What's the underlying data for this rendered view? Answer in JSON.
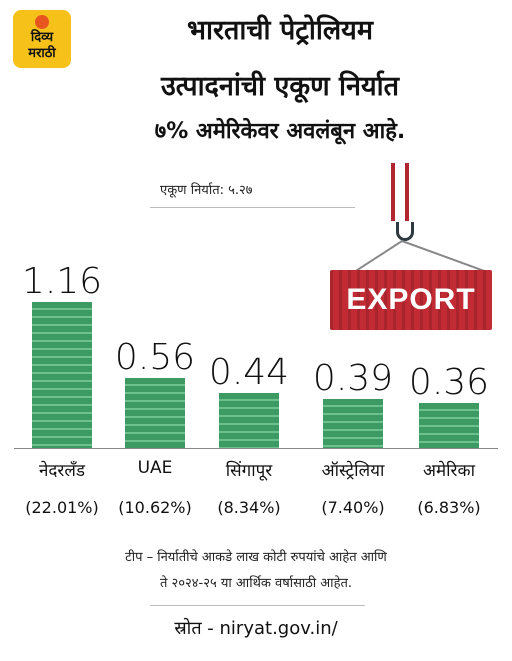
{
  "brand": {
    "line1": "दिव्य",
    "line2": "मराठी"
  },
  "title": {
    "line1": "भारताची पेट्रोलियम",
    "line2": "उत्पादनांची एकूण निर्यात",
    "line3": "७% अमेरिकेवर अवलंबून आहे."
  },
  "total_label": "एकूण निर्यात: ५.२७",
  "illustration": {
    "container_text": "EXPORT"
  },
  "chart_data": {
    "type": "bar",
    "title": "",
    "categories": [
      "नेदरलँड",
      "UAE",
      "सिंगापूर",
      "ऑस्ट्रेलिया",
      "अमेरिका"
    ],
    "values": [
      1.16,
      0.56,
      0.44,
      0.39,
      0.36
    ],
    "value_labels": [
      "1.16",
      "0.56",
      "0.44",
      "0.39",
      "0.36"
    ],
    "share_labels": [
      "(22.01%)",
      "(10.62%)",
      "(8.34%)",
      "(7.40%)",
      "(6.83%)"
    ],
    "ylim": [
      0,
      1.16
    ],
    "bar_color": "#3c9a62",
    "grid": false
  },
  "note": {
    "line1": "टीप – निर्यातीचे आकडे लाख कोटी रुपयांचे आहेत आणि",
    "line2": "ते २०२४-२५ या आर्थिक वर्षासाठी आहेत."
  },
  "source": "स्रोत - niryat.gov.in/"
}
